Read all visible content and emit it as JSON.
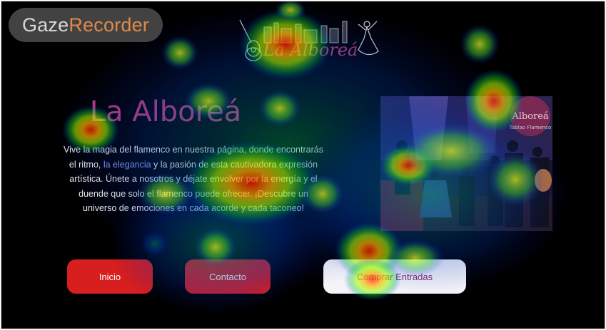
{
  "overlay": {
    "brand_part1": "Gaze",
    "brand_part2": "Recorder"
  },
  "header": {
    "logo_text": "La Alboreá"
  },
  "hero": {
    "title": "La Alboreá",
    "text_1": "Vive la magia del flamenco en nuestra página, donde encontrarás el ritmo, ",
    "text_highlight": "la elegancia",
    "text_2": " y la pasión de esta cautivadora expresión artística. Únete a nosotros y déjate envolver por la energía y el duende que solo el flamenco puede ofrecer. ¡Descubre un universo de emociones en cada acorde y cada taconeo!"
  },
  "photo": {
    "sign_text": "Alboreá",
    "sign_sub": "Tablao Flamenco"
  },
  "buttons": {
    "inicio": "Inicio",
    "contacto": "Contacto",
    "comprar": "Comprar Entradas"
  },
  "colors": {
    "title": "#c23c78",
    "button_red": "#d81f1f",
    "button_light": "#f4f4f8",
    "background": "#000000"
  }
}
